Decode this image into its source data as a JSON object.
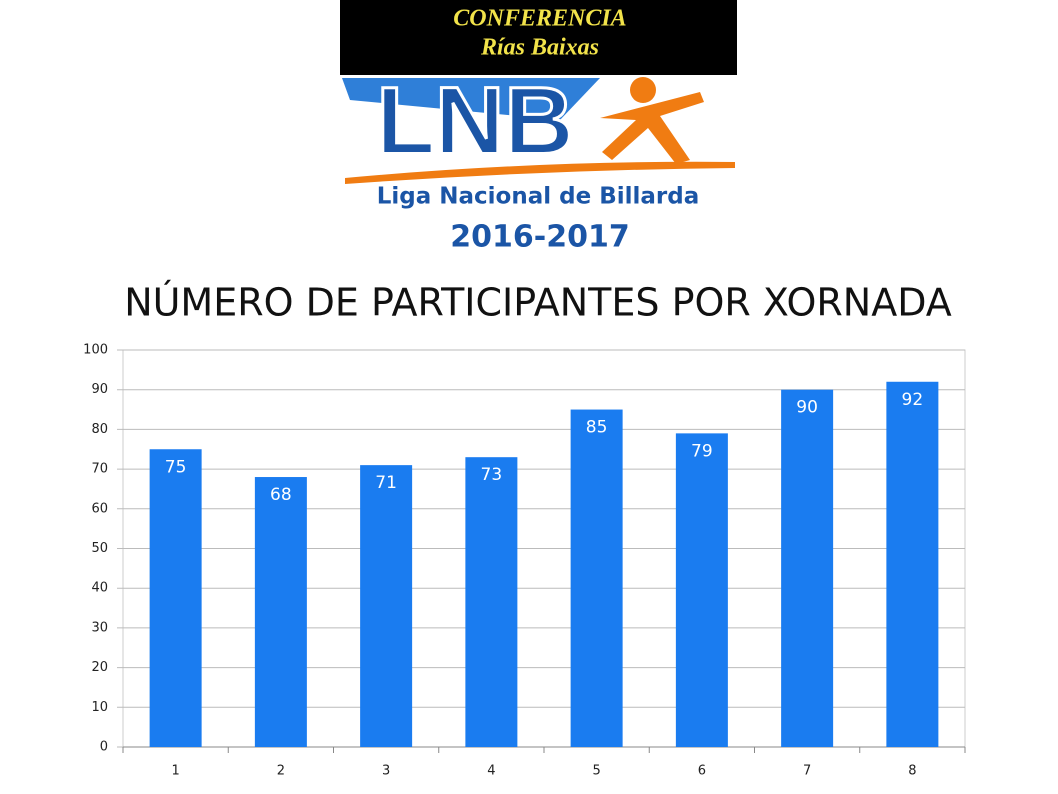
{
  "header": {
    "conference": "CONFERENCIA",
    "region": "Rías  Baixas",
    "logo": "LNB",
    "league": "Liga Nacional de Billarda",
    "season": "2016-2017"
  },
  "chart_data": {
    "type": "bar",
    "title": "NÚMERO DE PARTICIPANTES POR XORNADA",
    "categories": [
      "1",
      "2",
      "3",
      "4",
      "5",
      "6",
      "7",
      "8"
    ],
    "values": [
      75,
      68,
      71,
      73,
      85,
      79,
      90,
      92
    ],
    "color": "#1a7cf0",
    "ylim": [
      0,
      100
    ],
    "yticks": [
      0,
      10,
      20,
      30,
      40,
      50,
      60,
      70,
      80,
      90,
      100
    ],
    "grid": true
  }
}
